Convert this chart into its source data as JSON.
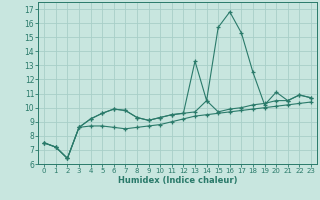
{
  "xlabel": "Humidex (Indice chaleur)",
  "bg_color": "#c8e6df",
  "grid_color": "#a8cfc8",
  "line_color": "#2a7a6a",
  "xlim": [
    -0.5,
    23.5
  ],
  "ylim": [
    6,
    17.5
  ],
  "xticks": [
    0,
    1,
    2,
    3,
    4,
    5,
    6,
    7,
    8,
    9,
    10,
    11,
    12,
    13,
    14,
    15,
    16,
    17,
    18,
    19,
    20,
    21,
    22,
    23
  ],
  "yticks": [
    6,
    7,
    8,
    9,
    10,
    11,
    12,
    13,
    14,
    15,
    16,
    17
  ],
  "series": [
    [
      7.5,
      7.2,
      6.4,
      8.6,
      9.2,
      9.6,
      9.9,
      9.8,
      9.3,
      9.1,
      9.3,
      9.5,
      9.6,
      13.3,
      10.5,
      15.7,
      16.8,
      15.3,
      12.5,
      10.2,
      11.1,
      10.5,
      10.9,
      10.7
    ],
    [
      7.5,
      7.2,
      6.4,
      8.6,
      9.2,
      9.6,
      9.9,
      9.8,
      9.3,
      9.1,
      9.3,
      9.5,
      9.6,
      9.7,
      10.5,
      9.7,
      9.9,
      10.0,
      10.2,
      10.3,
      10.5,
      10.5,
      10.9,
      10.7
    ],
    [
      7.5,
      7.2,
      6.4,
      8.6,
      8.7,
      8.7,
      8.6,
      8.5,
      8.6,
      8.7,
      8.8,
      9.0,
      9.2,
      9.4,
      9.5,
      9.6,
      9.7,
      9.8,
      9.9,
      10.0,
      10.1,
      10.2,
      10.3,
      10.4
    ]
  ]
}
